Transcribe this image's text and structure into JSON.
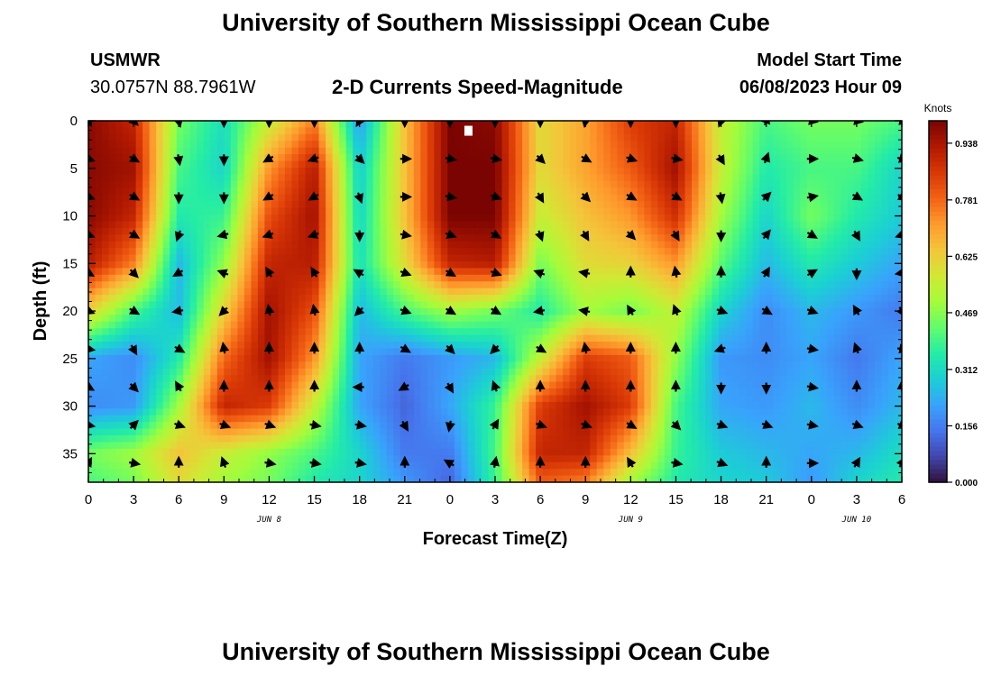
{
  "header": {
    "title": "University of Southern Mississippi Ocean Cube",
    "station": "USMWR",
    "coordinates": "30.0757N  88.7961W",
    "subtitle": "2-D Currents Speed-Magnitude",
    "model_start_label": "Model Start Time",
    "model_start_value": "06/08/2023 Hour 09"
  },
  "footer": {
    "title": "University of Southern Mississippi Ocean Cube"
  },
  "chart_data": {
    "type": "heatmap",
    "title": "2-D Currents Speed-Magnitude",
    "xlabel": "Forecast Time(Z)",
    "ylabel": "Depth (ft)",
    "x_ticks": [
      "0",
      "3",
      "6",
      "9",
      "12",
      "15",
      "18",
      "21",
      "0",
      "3",
      "6",
      "9",
      "12",
      "15",
      "18",
      "21",
      "0",
      "3",
      "6"
    ],
    "x_tick_values_hours": [
      0,
      3,
      6,
      9,
      12,
      15,
      18,
      21,
      24,
      27,
      30,
      33,
      36,
      39,
      42,
      45,
      48,
      51,
      54
    ],
    "day_labels": [
      {
        "label": "JUN 8",
        "hour": 12
      },
      {
        "label": "JUN 9",
        "hour": 36
      },
      {
        "label": "JUN 10",
        "hour": 51
      }
    ],
    "y_ticks": [
      0,
      5,
      10,
      15,
      20,
      25,
      30,
      35
    ],
    "ylim": [
      0,
      38
    ],
    "xlim": [
      0,
      54
    ],
    "y_inverted": true,
    "colorbar": {
      "label": "Knots",
      "ticks": [
        0.0,
        0.156,
        0.312,
        0.469,
        0.625,
        0.781,
        0.938
      ],
      "tick_labels": [
        "0.000",
        "0.156",
        "0.312",
        "0.469",
        "0.625",
        "0.781",
        "0.938"
      ],
      "range": [
        0.0,
        1.0
      ],
      "colormap": [
        "#30123b",
        "#4145ab",
        "#4675ed",
        "#39a2fc",
        "#1bcfd4",
        "#24eca6",
        "#61fc6c",
        "#a4fc3b",
        "#d1e834",
        "#f3c63a",
        "#fe9b2d",
        "#f36315",
        "#d93806",
        "#b11901",
        "#7a0402"
      ]
    },
    "speed_field": {
      "note": "approximate speed (knots), rows = depth ft, cols = forecast hour",
      "x_hours": [
        0,
        3,
        6,
        9,
        12,
        15,
        18,
        21,
        24,
        27,
        30,
        33,
        36,
        39,
        42,
        45,
        48,
        51,
        54
      ],
      "depths_ft": [
        0,
        5,
        10,
        15,
        20,
        25,
        30,
        35,
        38
      ],
      "values": [
        [
          0.98,
          0.9,
          0.45,
          0.32,
          0.55,
          0.75,
          0.2,
          0.65,
          1.0,
          0.98,
          0.6,
          0.7,
          0.85,
          0.9,
          0.55,
          0.4,
          0.45,
          0.45,
          0.4
        ],
        [
          0.98,
          0.95,
          0.4,
          0.3,
          0.72,
          0.92,
          0.28,
          0.65,
          1.0,
          1.0,
          0.6,
          0.7,
          0.8,
          0.95,
          0.55,
          0.35,
          0.4,
          0.4,
          0.3
        ],
        [
          0.98,
          0.9,
          0.35,
          0.38,
          0.82,
          0.95,
          0.3,
          0.65,
          1.0,
          1.0,
          0.55,
          0.65,
          0.72,
          0.88,
          0.5,
          0.3,
          0.45,
          0.35,
          0.28
        ],
        [
          0.92,
          0.75,
          0.25,
          0.48,
          0.9,
          0.92,
          0.32,
          0.6,
          0.9,
          0.92,
          0.45,
          0.6,
          0.62,
          0.72,
          0.42,
          0.25,
          0.35,
          0.28,
          0.22
        ],
        [
          0.62,
          0.4,
          0.25,
          0.62,
          0.95,
          0.82,
          0.25,
          0.4,
          0.5,
          0.45,
          0.35,
          0.5,
          0.45,
          0.55,
          0.3,
          0.18,
          0.25,
          0.2,
          0.15
        ],
        [
          0.22,
          0.18,
          0.35,
          0.78,
          0.95,
          0.72,
          0.22,
          0.15,
          0.2,
          0.25,
          0.55,
          0.85,
          0.8,
          0.48,
          0.2,
          0.18,
          0.22,
          0.15,
          0.22
        ],
        [
          0.18,
          0.2,
          0.5,
          0.9,
          0.85,
          0.55,
          0.22,
          0.12,
          0.22,
          0.38,
          0.85,
          0.95,
          0.85,
          0.4,
          0.22,
          0.2,
          0.25,
          0.18,
          0.25
        ],
        [
          0.45,
          0.5,
          0.65,
          0.55,
          0.48,
          0.4,
          0.3,
          0.15,
          0.15,
          0.4,
          0.9,
          0.9,
          0.65,
          0.38,
          0.28,
          0.25,
          0.22,
          0.25,
          0.32
        ],
        [
          0.4,
          0.45,
          0.6,
          0.5,
          0.45,
          0.35,
          0.3,
          0.2,
          0.12,
          0.38,
          0.8,
          0.75,
          0.5,
          0.35,
          0.3,
          0.28,
          0.2,
          0.3,
          0.35
        ]
      ]
    },
    "vector_field": {
      "note": "arrow direction in degrees (0 = right/east, 90 = up/north), rows = depth ft, cols = forecast hour",
      "x_hours": [
        0,
        3,
        6,
        9,
        12,
        15,
        18,
        21,
        24,
        27,
        30,
        33,
        36,
        39,
        42,
        45,
        48,
        51,
        54
      ],
      "depths_ft": [
        0,
        4,
        8,
        12,
        16,
        20,
        24,
        28,
        32,
        36
      ],
      "angles": [
        [
          -60,
          -45,
          -75,
          -90,
          -90,
          -90,
          -120,
          -90,
          -90,
          -90,
          -90,
          -100,
          -90,
          -90,
          -110,
          70,
          -10,
          -10,
          -10
        ],
        [
          -20,
          -30,
          -80,
          -90,
          -150,
          -160,
          -45,
          0,
          -10,
          -10,
          -45,
          -30,
          -20,
          -10,
          -60,
          70,
          0,
          -15,
          -15
        ],
        [
          -20,
          -30,
          -90,
          -90,
          -150,
          -150,
          -70,
          0,
          -10,
          -20,
          -60,
          -45,
          -30,
          -30,
          -80,
          45,
          10,
          -30,
          -30
        ],
        [
          -20,
          -30,
          -110,
          -165,
          -160,
          -160,
          -90,
          -10,
          -20,
          -30,
          -70,
          -60,
          -45,
          -60,
          -90,
          50,
          -30,
          -60,
          -160
        ],
        [
          -30,
          -45,
          -150,
          160,
          120,
          120,
          150,
          -20,
          -30,
          -20,
          160,
          170,
          90,
          100,
          90,
          60,
          30,
          -90,
          -170
        ],
        [
          -20,
          -30,
          -170,
          -135,
          100,
          100,
          -135,
          -20,
          -30,
          -30,
          -170,
          170,
          120,
          110,
          -20,
          -30,
          -20,
          120,
          -60
        ],
        [
          -10,
          -60,
          -30,
          100,
          90,
          90,
          90,
          -30,
          -45,
          -135,
          -30,
          100,
          90,
          90,
          -160,
          90,
          -10,
          110,
          -10
        ],
        [
          -30,
          -45,
          120,
          90,
          90,
          90,
          -180,
          -150,
          -60,
          110,
          90,
          90,
          90,
          90,
          -90,
          -90,
          -10,
          90,
          90
        ],
        [
          -10,
          45,
          -20,
          -20,
          -20,
          -10,
          -10,
          -60,
          -100,
          60,
          -20,
          -20,
          -30,
          -45,
          -20,
          -20,
          -10,
          -20,
          -20
        ],
        [
          60,
          -10,
          90,
          110,
          -10,
          -10,
          -10,
          90,
          150,
          80,
          90,
          90,
          120,
          -10,
          -20,
          90,
          0,
          60,
          60
        ]
      ]
    },
    "marker": {
      "type": "white-square",
      "hour": 25.2,
      "depth_ft": 1.0
    }
  }
}
